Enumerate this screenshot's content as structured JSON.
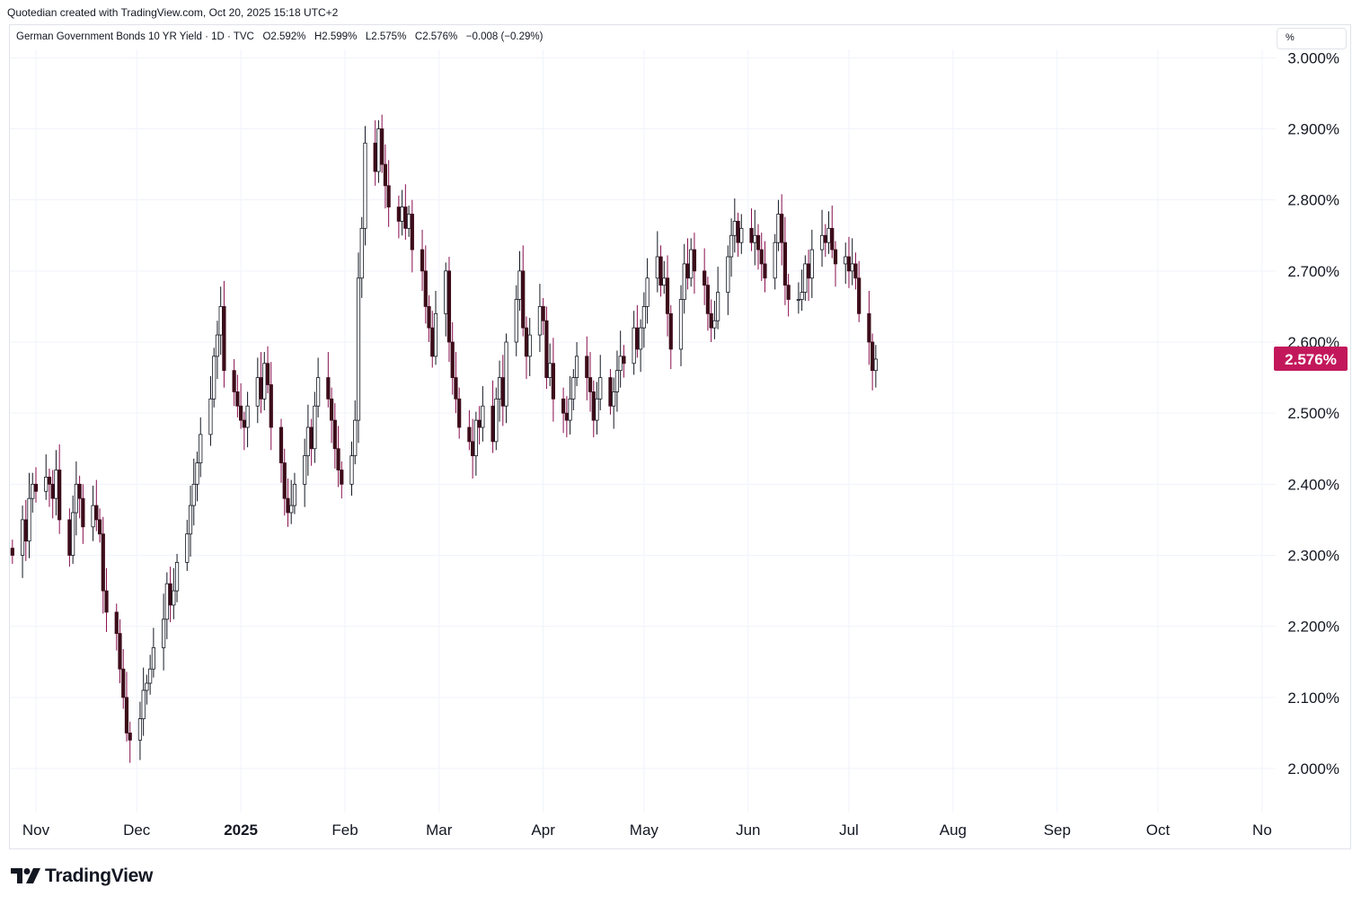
{
  "header": {
    "attribution": "Quotedian created with TradingView.com, Oct 20, 2025 15:18 UTC+2"
  },
  "legend": {
    "title": "German Government Bonds 10 YR Yield · 1D · TVC",
    "open": "O2.592%",
    "high": "H2.599%",
    "low": "L2.575%",
    "close": "C2.576%",
    "change": "−0.008 (−0.29%)"
  },
  "unit_button": "%",
  "price_label": "2.576%",
  "branding": {
    "name": "TradingView"
  },
  "colors": {
    "up": "#ffffff",
    "down": "#3d0c1a",
    "wick_up": "#131722",
    "wick_down": "#880e4f",
    "price_tag": "#c2185b",
    "grid": "#f0f3fa"
  },
  "chart_data": {
    "type": "candlestick",
    "title": "German Government Bonds 10 YR Yield · 1D · TVC",
    "ylim": [
      1.89,
      3.03
    ],
    "y_ticks": [
      "3.000%",
      "2.900%",
      "2.800%",
      "2.700%",
      "2.600%",
      "2.500%",
      "2.400%",
      "2.300%",
      "2.200%",
      "2.100%",
      "2.000%"
    ],
    "y_tick_values": [
      3.0,
      2.9,
      2.8,
      2.7,
      2.6,
      2.5,
      2.4,
      2.3,
      2.2,
      2.1,
      2.0
    ],
    "x_ticks": [
      "Nov",
      "Dec",
      "2025",
      "Feb",
      "Mar",
      "Apr",
      "May",
      "Jun",
      "Jul",
      "Aug",
      "Sep",
      "Oct",
      "No"
    ],
    "x_tick_dates": [
      "2024-11-01",
      "2024-12-01",
      "2025-01-01",
      "2025-02-01",
      "2025-03-01",
      "2025-04-01",
      "2025-05-01",
      "2025-06-01",
      "2025-07-01",
      "2025-08-01",
      "2025-09-01",
      "2025-10-01",
      "2025-11-01"
    ],
    "start_date": "2024-10-25",
    "last_close": 2.576,
    "closes": [
      2.3,
      2.35,
      2.32,
      2.38,
      2.4,
      2.39,
      2.41,
      2.4,
      2.38,
      2.42,
      2.35,
      2.3,
      2.36,
      2.4,
      2.38,
      2.34,
      2.37,
      2.35,
      2.33,
      2.25,
      2.22,
      2.19,
      2.14,
      2.1,
      2.05,
      2.04,
      2.07,
      2.11,
      2.12,
      2.14,
      2.17,
      2.21,
      2.26,
      2.23,
      2.25,
      2.29,
      2.33,
      2.37,
      2.4,
      2.43,
      2.47,
      2.52,
      2.58,
      2.61,
      2.65,
      2.56,
      2.53,
      2.51,
      2.49,
      2.48,
      2.51,
      2.55,
      2.52,
      2.57,
      2.54,
      2.48,
      2.43,
      2.38,
      2.36,
      2.37,
      2.4,
      2.44,
      2.48,
      2.45,
      2.51,
      2.55,
      2.52,
      2.49,
      2.45,
      2.42,
      2.4,
      2.44,
      2.49,
      2.69,
      2.76,
      2.88,
      2.84,
      2.9,
      2.85,
      2.82,
      2.79,
      2.77,
      2.79,
      2.76,
      2.78,
      2.73,
      2.7,
      2.65,
      2.62,
      2.58,
      2.64,
      2.7,
      2.6,
      2.55,
      2.52,
      2.48,
      2.46,
      2.44,
      2.49,
      2.48,
      2.51,
      2.46,
      2.52,
      2.55,
      2.51,
      2.6,
      2.66,
      2.7,
      2.62,
      2.58,
      2.61,
      2.65,
      2.63,
      2.55,
      2.57,
      2.52,
      2.5,
      2.49,
      2.52,
      2.55,
      2.58,
      2.55,
      2.53,
      2.49,
      2.52,
      2.55,
      2.51,
      2.53,
      2.56,
      2.58,
      2.57,
      2.62,
      2.59,
      2.62,
      2.65,
      2.69,
      2.72,
      2.68,
      2.69,
      2.64,
      2.59,
      2.66,
      2.71,
      2.69,
      2.73,
      2.7,
      2.68,
      2.64,
      2.62,
      2.63,
      2.67,
      2.72,
      2.75,
      2.77,
      2.74,
      2.76,
      2.74,
      2.75,
      2.73,
      2.71,
      2.69,
      2.74,
      2.78,
      2.74,
      2.68,
      2.66,
      2.66,
      2.67,
      2.71,
      2.69,
      2.73,
      2.75,
      2.74,
      2.76,
      2.73,
      2.71,
      2.72,
      2.7,
      2.71,
      2.69,
      2.64,
      2.6,
      2.56,
      2.576
    ]
  }
}
